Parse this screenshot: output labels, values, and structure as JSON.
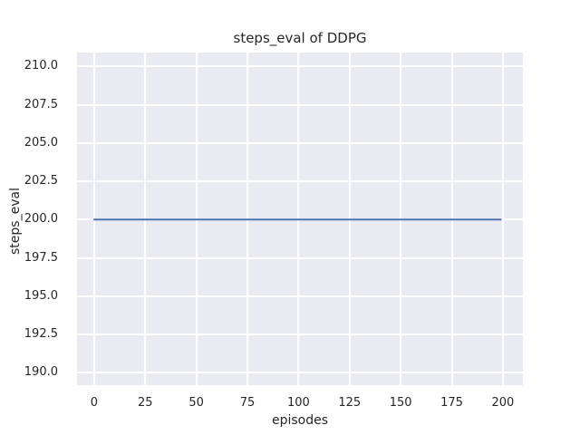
{
  "chart_data": {
    "type": "line",
    "title": "steps_eval of DDPG",
    "xlabel": "episodes",
    "ylabel": "steps_eval",
    "x_ticks": [
      0,
      25,
      50,
      75,
      100,
      125,
      150,
      175,
      200
    ],
    "y_ticks": [
      190.0,
      192.5,
      195.0,
      197.5,
      200.0,
      202.5,
      205.0,
      207.5,
      210.0
    ],
    "xlim": [
      -8.4,
      209.8
    ],
    "ylim": [
      189.2,
      210.9
    ],
    "grid": true,
    "legend": false,
    "series": [
      {
        "name": "steps_eval",
        "color": "#4c72b0",
        "x": [
          0,
          199
        ],
        "y": [
          200,
          200
        ]
      }
    ],
    "style": {
      "figure_bg": "#ffffff",
      "plot_bg": "#eaeaf2",
      "grid_color": "#ffffff",
      "text_color": "#262626",
      "line_width": 2
    }
  }
}
